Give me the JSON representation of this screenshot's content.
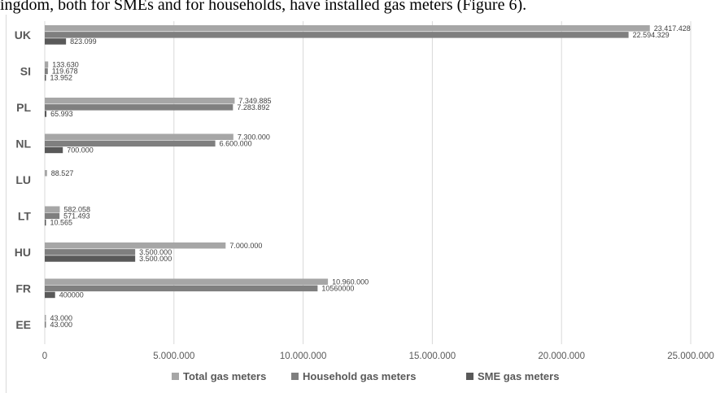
{
  "caption": "ingdom, both for SMEs and for households, have installed gas meters (Figure 6).",
  "colors": {
    "total": "#a6a6a6",
    "household": "#7f7f7f",
    "sme": "#595959",
    "grid": "#d9d9d9"
  },
  "chart_data": {
    "type": "bar",
    "orientation": "horizontal",
    "title": "",
    "xlabel": "",
    "ylabel": "",
    "xlim": [
      0,
      25000000
    ],
    "grid": true,
    "legend_position": "bottom",
    "categories": [
      "UK",
      "SI",
      "PL",
      "NL",
      "LU",
      "LT",
      "HU",
      "FR",
      "EE"
    ],
    "x_ticks": [
      0,
      5000000,
      10000000,
      15000000,
      20000000,
      25000000
    ],
    "x_tick_labels": [
      "0",
      "5.000.000",
      "10.000.000",
      "15.000.000",
      "20.000.000",
      "25.000.000"
    ],
    "series": [
      {
        "name": "Total gas meters",
        "values": [
          23417428,
          133630,
          7349885,
          7300000,
          88527,
          582058,
          7000000,
          10960000,
          43000
        ],
        "labels": [
          "23.417.428",
          "133.630",
          "7.349.885",
          "7.300.000",
          "88.527",
          "582.058",
          "7.000.000",
          "10.960.000",
          "43.000"
        ]
      },
      {
        "name": "Household gas meters",
        "values": [
          22594329,
          119678,
          7283892,
          6600000,
          null,
          571493,
          3500000,
          10560000,
          43000
        ],
        "labels": [
          "22.594.329",
          "119.678",
          "7.283.892",
          "6.600.000",
          "",
          "571.493",
          "3.500.000",
          "10560000",
          "43.000"
        ]
      },
      {
        "name": "SME gas meters",
        "values": [
          823099,
          13952,
          65993,
          700000,
          null,
          10565,
          3500000,
          400000,
          null
        ],
        "labels": [
          "823.099",
          "13.952",
          "65.993",
          "700.000",
          "",
          "10.565",
          "3.500.000",
          "400000",
          ""
        ]
      }
    ]
  }
}
